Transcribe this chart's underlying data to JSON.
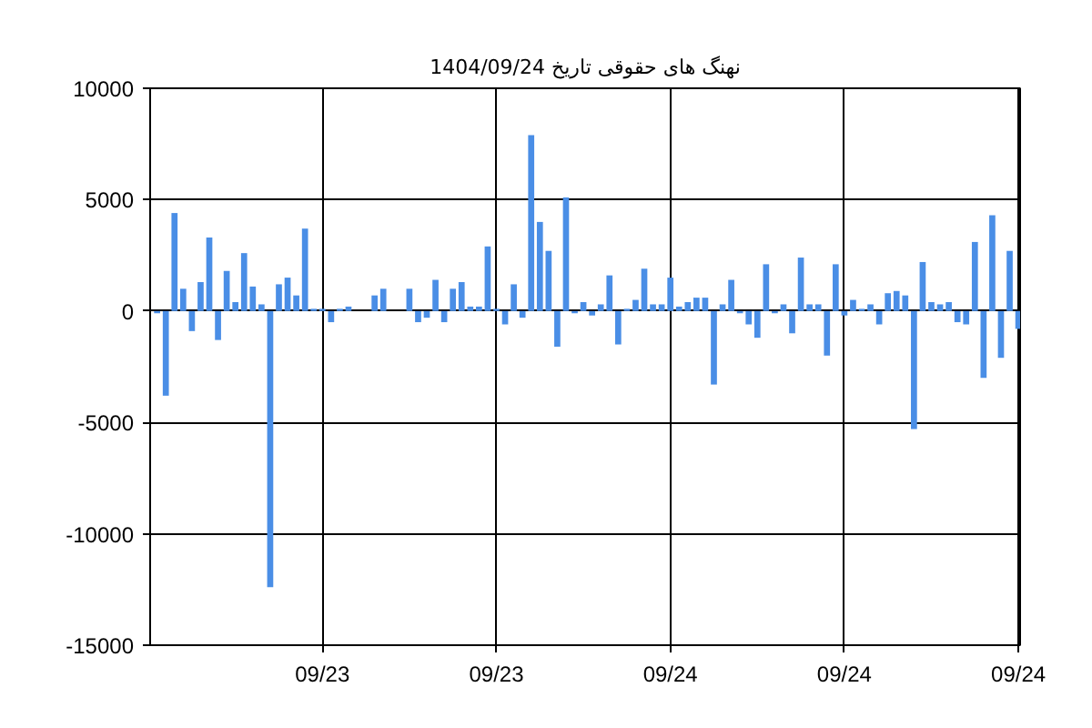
{
  "chart_data": {
    "type": "bar",
    "title": "نهنگ های حقوقی تاریخ 1404/09/24",
    "color": "#4a8ee6",
    "categories": [
      null,
      null,
      null,
      null,
      null,
      null,
      null,
      null,
      null,
      null,
      null,
      null,
      null,
      null,
      null,
      null,
      null,
      null,
      null,
      "09/23",
      null,
      null,
      null,
      null,
      null,
      null,
      null,
      null,
      null,
      null,
      null,
      null,
      null,
      null,
      null,
      null,
      null,
      null,
      null,
      "09/23",
      null,
      null,
      null,
      null,
      null,
      null,
      null,
      null,
      null,
      null,
      null,
      null,
      null,
      null,
      null,
      null,
      null,
      null,
      null,
      "09/24",
      null,
      null,
      null,
      null,
      null,
      null,
      null,
      null,
      null,
      null,
      null,
      null,
      null,
      null,
      null,
      null,
      null,
      null,
      null,
      "09/24",
      null,
      null,
      null,
      null,
      null,
      null,
      null,
      null,
      null,
      null,
      null,
      null,
      null,
      null,
      null,
      null,
      null,
      null,
      null,
      "09/24"
    ],
    "values": [
      -100,
      -3800,
      4400,
      1000,
      -900,
      1300,
      3300,
      -1300,
      1800,
      400,
      2600,
      1100,
      300,
      -12400,
      1200,
      1500,
      700,
      3700,
      100,
      100,
      -500,
      100,
      200,
      null,
      null,
      700,
      1000,
      null,
      null,
      1000,
      -500,
      -300,
      1400,
      -500,
      1000,
      1300,
      200,
      200,
      2900,
      100,
      -600,
      1200,
      -300,
      7900,
      4000,
      2700,
      -1600,
      5100,
      -100,
      400,
      -200,
      300,
      1600,
      -1500,
      100,
      500,
      1900,
      300,
      300,
      1500,
      200,
      400,
      600,
      600,
      -3300,
      300,
      1400,
      -100,
      -600,
      -1200,
      2100,
      -100,
      300,
      -1000,
      2400,
      300,
      300,
      -2000,
      2100,
      -200,
      500,
      100,
      300,
      -600,
      800,
      900,
      700,
      -5300,
      2200,
      400,
      300,
      400,
      -500,
      -600,
      3100,
      -3000,
      4300,
      -2100,
      2700,
      -800
    ],
    "ylim": [
      -15000,
      10000
    ],
    "yticks": [
      -15000,
      -10000,
      -5000,
      0,
      5000,
      10000
    ],
    "grid": true
  }
}
